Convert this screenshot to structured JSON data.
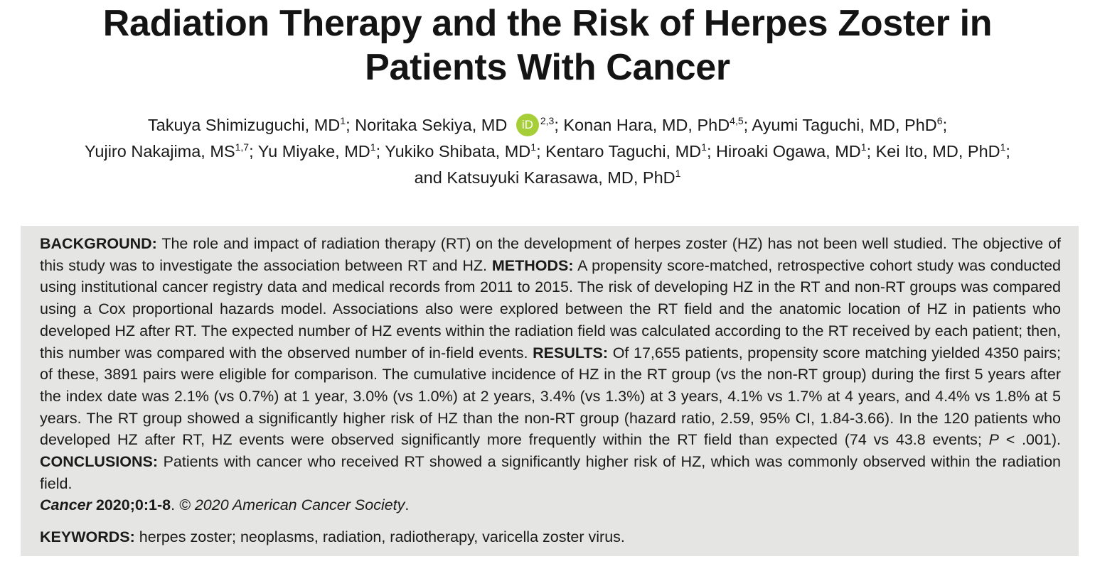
{
  "article": {
    "title": "Radiation Therapy and the Risk of Herpes Zoster in Patients With Cancer"
  },
  "authors": [
    {
      "name": "Takuya Shimizuguchi, MD",
      "sup": "1",
      "sep": "; "
    },
    {
      "name": "Noritaka Sekiya, MD",
      "orcid": "iD",
      "sup": "2,3",
      "sep": "; "
    },
    {
      "name": "Konan Hara, MD, PhD",
      "sup": "4,5",
      "sep": "; "
    },
    {
      "name": "Ayumi Taguchi, MD, PhD",
      "sup": "6",
      "sep": ";"
    },
    {
      "name": "Yujiro Nakajima, MS",
      "sup": "1,7",
      "sep": "; "
    },
    {
      "name": "Yu Miyake, MD",
      "sup": "1",
      "sep": "; "
    },
    {
      "name": "Yukiko Shibata, MD",
      "sup": "1",
      "sep": "; "
    },
    {
      "name": "Kentaro Taguchi, MD",
      "sup": "1",
      "sep": "; "
    },
    {
      "name": "Hiroaki Ogawa, MD",
      "sup": "1",
      "sep": "; "
    },
    {
      "name": "Kei Ito, MD, PhD",
      "sup": "1",
      "sep": ";"
    },
    {
      "name": "and Katsuyuki Karasawa, MD, PhD",
      "sup": "1",
      "sep": ""
    }
  ],
  "abstract": {
    "background_label": "BACKGROUND:",
    "background_text": " The role and impact of radiation therapy (RT) on the development of herpes zoster (HZ) has not been well studied. The objective of this study was to investigate the association between RT and HZ. ",
    "methods_label": "METHODS:",
    "methods_text": " A propensity score-matched, retrospective cohort study was conducted using institutional cancer registry data and medical records from 2011 to 2015. The risk of developing HZ in the RT and non-RT groups was compared using a Cox proportional hazards model. Associations also were explored between the RT field and the anatomic location of HZ in patients who developed HZ after RT. The expected number of HZ events within the radiation field was calculated according to the RT received by each patient; then, this number was compared with the observed number of in-field events. ",
    "results_label": "RESULTS:",
    "results_text_1": " Of 17,655 patients, propensity score matching yielded 4350 pairs; of these, 3891 pairs were eligible for comparison. The cumulative incidence of HZ in the RT group (vs the non-RT group) during the first 5 years after the index date was 2.1% (vs 0.7%) at 1 year, 3.0% (vs 1.0%) at 2 years, 3.4% (vs 1.3%) at 3 years, 4.1% vs 1.7% at 4 years, and 4.4% vs 1.8% at 5 years. The RT group showed a significantly higher risk of HZ than the non-RT group (hazard ratio, 2.59, 95% CI, 1.84-3.66). In the 120 patients who developed HZ after RT, HZ events were observed significantly more frequently within the RT field than expected (74 vs 43.8 events; ",
    "results_p": "P",
    "results_text_2": " < .001). ",
    "conclusions_label": "CONCLUSIONS:",
    "conclusions_text": " Patients with cancer who received RT showed a significantly higher risk of HZ, which was commonly observed within the radiation field.",
    "citation_journal": "Cancer",
    "citation_ref": " 2020;0:1-8",
    "citation_dot": ". ",
    "citation_copyright": "© 2020 American Cancer Society",
    "citation_end": "."
  },
  "keywords": {
    "label": "KEYWORDS:",
    "text": " herpes zoster; neoplasms, radiation, radiotherapy, varicella zoster virus."
  }
}
